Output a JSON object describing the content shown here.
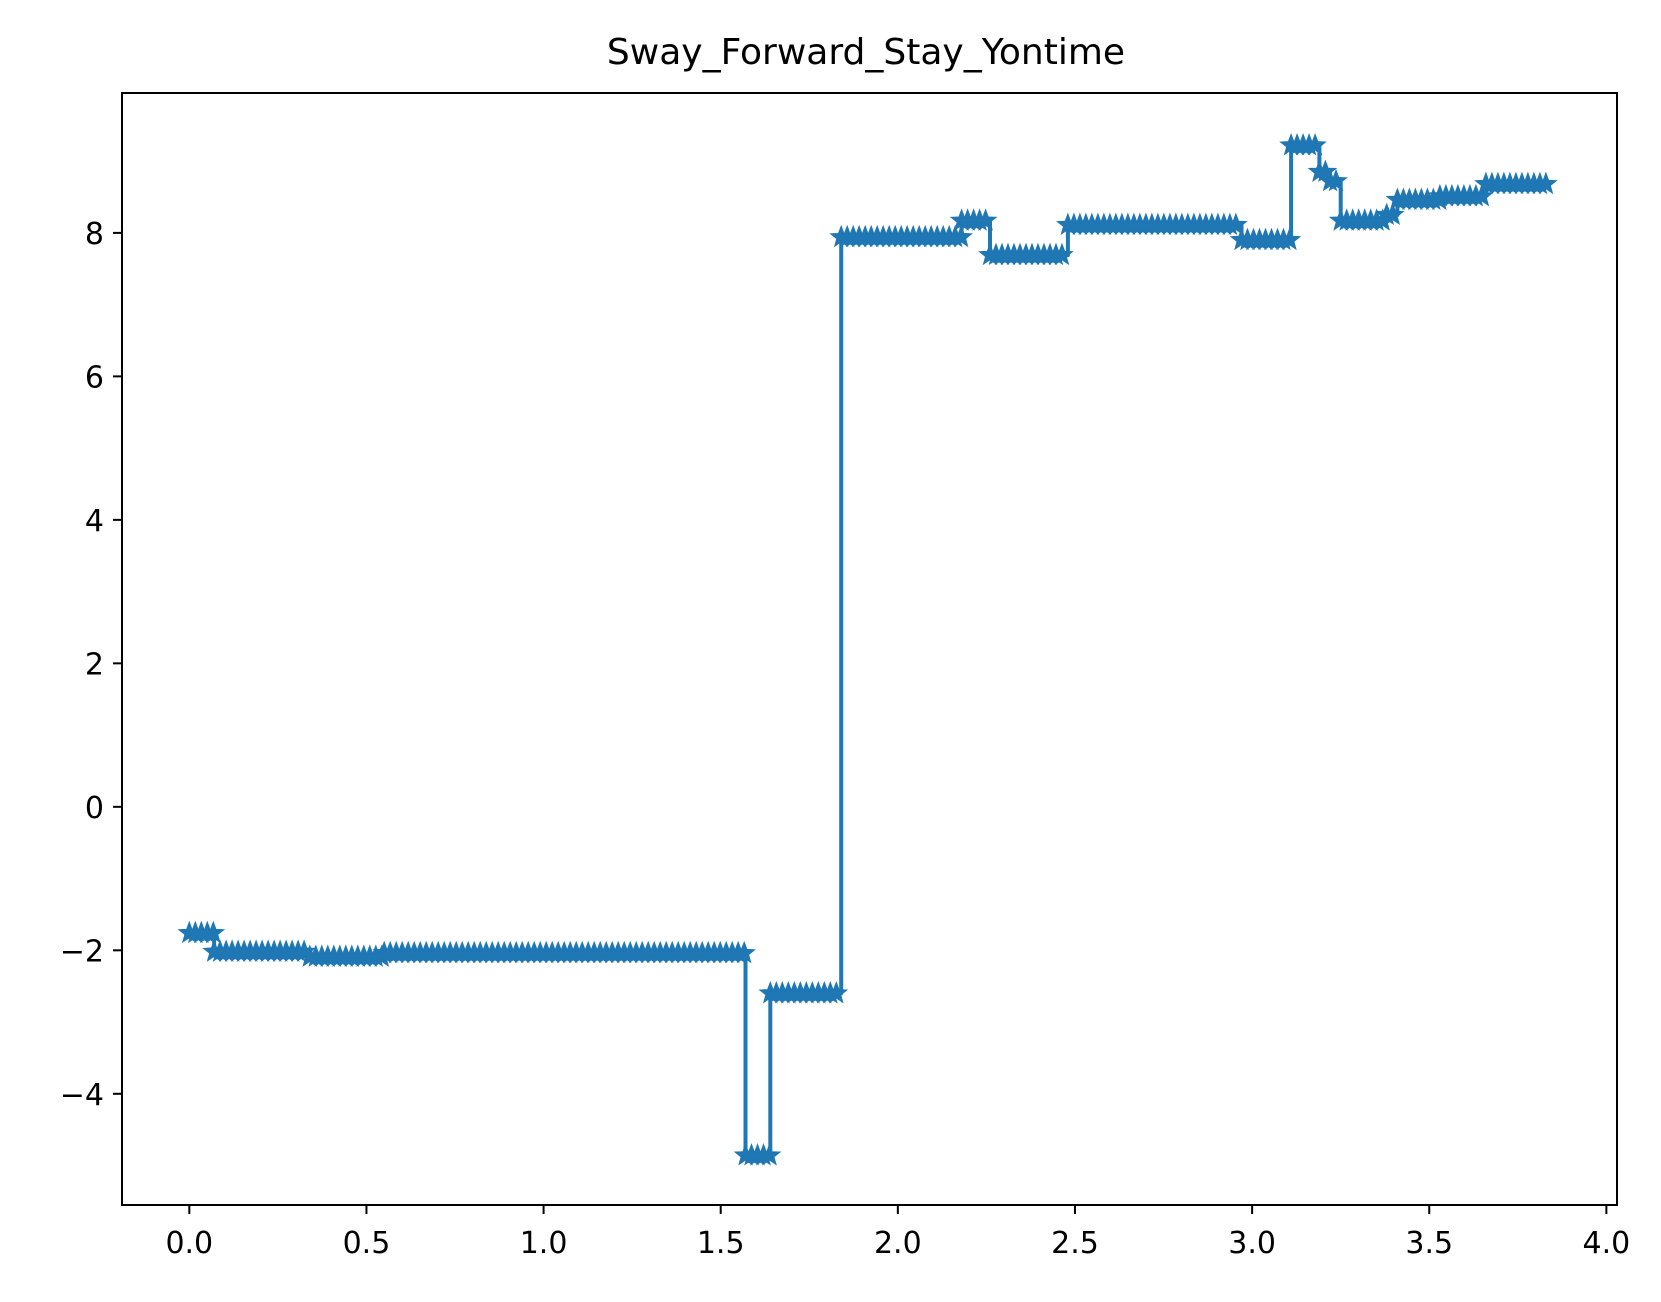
{
  "chart_data": {
    "type": "line",
    "title": "Sway_Forward_Stay_Yontime",
    "xlabel": "",
    "ylabel": "",
    "xlim": [
      -0.19,
      4.03
    ],
    "ylim": [
      -5.55,
      9.95
    ],
    "grid": false,
    "marker": "star",
    "color": "#1f77b4",
    "x_ticks": [
      0.0,
      0.5,
      1.0,
      1.5,
      2.0,
      2.5,
      3.0,
      3.5,
      4.0
    ],
    "x_tick_labels": [
      "0.0",
      "0.5",
      "1.0",
      "1.5",
      "2.0",
      "2.5",
      "3.0",
      "3.5",
      "4.0"
    ],
    "y_ticks": [
      -4,
      -2,
      0,
      2,
      4,
      6,
      8
    ],
    "y_tick_labels": [
      "−4",
      "−2",
      "0",
      "2",
      "4",
      "6",
      "8"
    ],
    "segments": [
      {
        "x_start": 0.0,
        "x_end": 0.07,
        "y": -1.76
      },
      {
        "x_start": 0.07,
        "x_end": 0.34,
        "y": -2.02
      },
      {
        "x_start": 0.34,
        "x_end": 0.55,
        "y": -2.09
      },
      {
        "x_start": 0.55,
        "x_end": 1.57,
        "y": -2.04
      },
      {
        "x_start": 1.57,
        "x_end": 1.64,
        "y": -4.86
      },
      {
        "x_start": 1.64,
        "x_end": 1.84,
        "y": -2.6
      },
      {
        "x_start": 1.84,
        "x_end": 2.18,
        "y": 7.94
      },
      {
        "x_start": 2.18,
        "x_end": 2.26,
        "y": 8.17
      },
      {
        "x_start": 2.26,
        "x_end": 2.48,
        "y": 7.69
      },
      {
        "x_start": 2.48,
        "x_end": 2.97,
        "y": 8.11
      },
      {
        "x_start": 2.97,
        "x_end": 3.11,
        "y": 7.9
      },
      {
        "x_start": 3.11,
        "x_end": 3.19,
        "y": 9.22
      },
      {
        "x_start": 3.19,
        "x_end": 3.22,
        "y": 8.85
      },
      {
        "x_start": 3.22,
        "x_end": 3.25,
        "y": 8.72
      },
      {
        "x_start": 3.25,
        "x_end": 3.38,
        "y": 8.17
      },
      {
        "x_start": 3.38,
        "x_end": 3.41,
        "y": 8.25
      },
      {
        "x_start": 3.41,
        "x_end": 3.53,
        "y": 8.46
      },
      {
        "x_start": 3.53,
        "x_end": 3.66,
        "y": 8.51
      },
      {
        "x_start": 3.66,
        "x_end": 3.84,
        "y": 8.68
      }
    ]
  }
}
